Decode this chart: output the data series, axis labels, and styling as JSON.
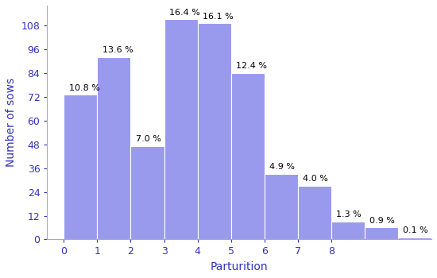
{
  "bar_data": [
    {
      "x": 0,
      "height": 73,
      "pct": "10.8 %"
    },
    {
      "x": 1,
      "height": 92,
      "pct": "13.6 %"
    },
    {
      "x": 2,
      "height": 47,
      "pct": "7.0 %"
    },
    {
      "x": 3,
      "height": 111,
      "pct": "16.4 %"
    },
    {
      "x": 4,
      "height": 109,
      "pct": "16.1 %"
    },
    {
      "x": 5,
      "height": 84,
      "pct": "12.4 %"
    },
    {
      "x": 6,
      "height": 33,
      "pct": "4.9 %"
    },
    {
      "x": 7,
      "height": 27,
      "pct": "4.0 %"
    },
    {
      "x": 8,
      "height": 9,
      "pct": "1.3 %"
    },
    {
      "x": 9,
      "height": 6,
      "pct": "0.9 %"
    },
    {
      "x": 10,
      "height": 1,
      "pct": "0.1 %"
    }
  ],
  "xtick_labels": [
    "0",
    "1",
    "2",
    "3",
    "4",
    "5",
    "6",
    "7",
    "8"
  ],
  "xtick_positions": [
    0,
    1,
    2,
    3,
    4,
    5,
    6,
    7,
    8
  ],
  "ytick_positions": [
    0,
    12,
    24,
    36,
    48,
    60,
    72,
    84,
    96,
    108
  ],
  "bar_color": "#9999ee",
  "bar_edge_color": "#ffffff",
  "xlabel": "Parturition",
  "ylabel": "Number of sows",
  "ylim": [
    0,
    118
  ],
  "xlim": [
    -0.5,
    11.0
  ],
  "label_fontsize": 8,
  "tick_fontsize": 9,
  "axis_label_fontsize": 10,
  "label_color": "#000000",
  "tick_color": "#3333bb",
  "axis_label_color": "#3333bb"
}
